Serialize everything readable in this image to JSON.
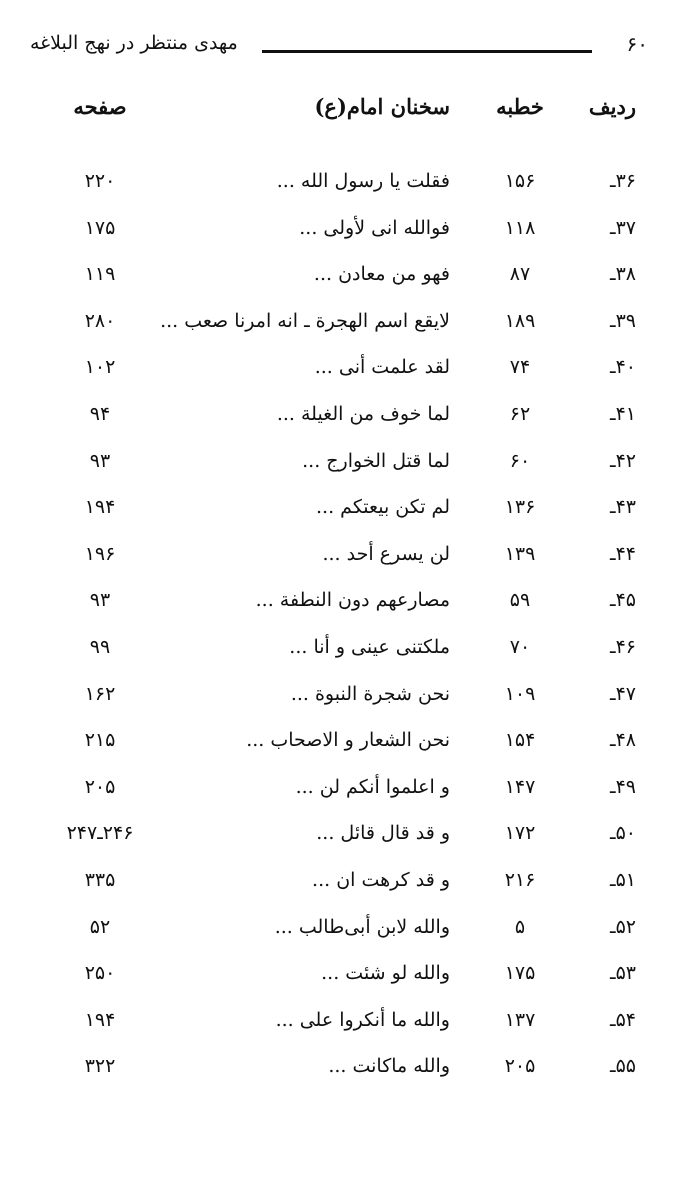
{
  "header": {
    "page_number": "۶۰",
    "running_title": "مهدی منتظر در نهج البلاغه"
  },
  "columns": {
    "radif": "ردیف",
    "khutbah": "خطبه",
    "sayings": "سخنان امام(ع)",
    "page": "صفحه"
  },
  "rows": [
    {
      "radif": "۳۶ـ",
      "khutbah": "۱۵۶",
      "text": "فقلت یا رسول الله ...",
      "page": "۲۲۰"
    },
    {
      "radif": "۳۷ـ",
      "khutbah": "۱۱۸",
      "text": "فوالله انی لأولی ...",
      "page": "۱۷۵"
    },
    {
      "radif": "۳۸ـ",
      "khutbah": "۸۷",
      "text": "فهو من معادن ...",
      "page": "۱۱۹"
    },
    {
      "radif": "۳۹ـ",
      "khutbah": "۱۸۹",
      "text": "لایقع اسم الهجرة ـ انه امرنا صعب ...",
      "page": "۲۸۰"
    },
    {
      "radif": "۴۰ـ",
      "khutbah": "۷۴",
      "text": "لقد علمت أنی ...",
      "page": "۱۰۲"
    },
    {
      "radif": "۴۱ـ",
      "khutbah": "۶۲",
      "text": "لما خوف من الغیلة ...",
      "page": "۹۴"
    },
    {
      "radif": "۴۲ـ",
      "khutbah": "۶۰",
      "text": "لما قتل الخوارج ...",
      "page": "۹۳"
    },
    {
      "radif": "۴۳ـ",
      "khutbah": "۱۳۶",
      "text": "لم تکن بیعتکم ...",
      "page": "۱۹۴"
    },
    {
      "radif": "۴۴ـ",
      "khutbah": "۱۳۹",
      "text": "لن یسرع أحد ...",
      "page": "۱۹۶"
    },
    {
      "radif": "۴۵ـ",
      "khutbah": "۵۹",
      "text": "مصارعهم دون النطفة ...",
      "page": "۹۳"
    },
    {
      "radif": "۴۶ـ",
      "khutbah": "۷۰",
      "text": "ملکتنی عینی و أنا ...",
      "page": "۹۹"
    },
    {
      "radif": "۴۷ـ",
      "khutbah": "۱۰۹",
      "text": "نحن شجرة النبوة ...",
      "page": "۱۶۲"
    },
    {
      "radif": "۴۸ـ",
      "khutbah": "۱۵۴",
      "text": "نحن الشعار و الاصحاب ...",
      "page": "۲۱۵"
    },
    {
      "radif": "۴۹ـ",
      "khutbah": "۱۴۷",
      "text": "و اعلموا أنکم لن ...",
      "page": "۲۰۵"
    },
    {
      "radif": "۵۰ـ",
      "khutbah": "۱۷۲",
      "text": "و قد قال قائل ...",
      "page": "۲۴۶ـ۲۴۷"
    },
    {
      "radif": "۵۱ـ",
      "khutbah": "۲۱۶",
      "text": "و قد کرهت ان ...",
      "page": "۳۳۵"
    },
    {
      "radif": "۵۲ـ",
      "khutbah": "۵",
      "text": "والله لابن أبی‌طالب ...",
      "page": "۵۲"
    },
    {
      "radif": "۵۳ـ",
      "khutbah": "۱۷۵",
      "text": "والله لو شئت ...",
      "page": "۲۵۰"
    },
    {
      "radif": "۵۴ـ",
      "khutbah": "۱۳۷",
      "text": "والله ما أنکروا علی ...",
      "page": "۱۹۴"
    },
    {
      "radif": "۵۵ـ",
      "khutbah": "۲۰۵",
      "text": "والله ماکانت ...",
      "page": "۳۲۲"
    }
  ]
}
